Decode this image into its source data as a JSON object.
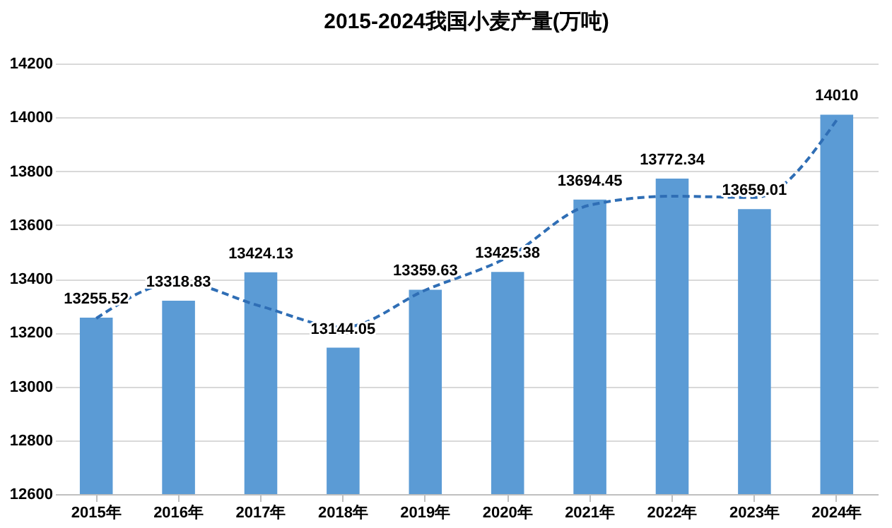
{
  "chart_data": {
    "type": "bar",
    "title": "2015-2024我国小麦产量(万吨)",
    "categories": [
      "2015年",
      "2016年",
      "2017年",
      "2018年",
      "2019年",
      "2020年",
      "2021年",
      "2022年",
      "2023年",
      "2024年"
    ],
    "series": [
      {
        "color": "#5b9bd5",
        "values": [
          13255.52,
          13318.83,
          13424.13,
          13144.05,
          13359.63,
          13425.38,
          13694.45,
          13772.34,
          13659.01,
          14010
        ],
        "value_labels": [
          "13255.52",
          "13318.83",
          "13424.13",
          "13144.05",
          "13359.63",
          "13425.38",
          "13694.45",
          "13772.34",
          "13659.01",
          "14010"
        ]
      },
      {
        "type": "line",
        "color": "#2f6eb5",
        "line_style": "dashed",
        "marker": "none",
        "values": [
          13253,
          13386,
          13298,
          13220,
          13358,
          13480,
          13674,
          13707,
          13702,
          13990
        ]
      }
    ],
    "ylim": [
      12600,
      14200
    ],
    "yticks": [
      12600,
      12800,
      13000,
      13200,
      13400,
      13600,
      13800,
      14000,
      14200
    ],
    "grid": "y"
  }
}
